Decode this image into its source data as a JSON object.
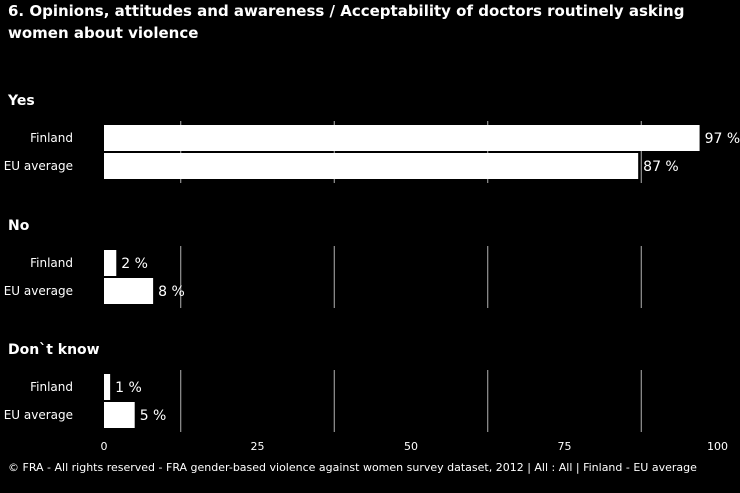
{
  "title": "6. Opinions, attitudes and awareness / Acceptability of doctors routinely asking women about violence",
  "source": "© FRA - All rights reserved - FRA gender-based violence against women survey dataset, 2012 | All : All | Finland - EU average",
  "chart_data": {
    "type": "bar",
    "orientation": "horizontal",
    "xlim": [
      0,
      100
    ],
    "xticks": [
      "0",
      "25",
      "50",
      "75",
      "100"
    ],
    "unit": "%",
    "groups": [
      {
        "name": "Yes",
        "bars": [
          {
            "category": "Finland",
            "value": 97,
            "label": "97 %"
          },
          {
            "category": "EU average",
            "value": 87,
            "label": "87 %"
          }
        ]
      },
      {
        "name": "No",
        "bars": [
          {
            "category": "Finland",
            "value": 2,
            "label": "2 %"
          },
          {
            "category": "EU average",
            "value": 8,
            "label": "8 %"
          }
        ]
      },
      {
        "name": "Don`t know",
        "bars": [
          {
            "category": "Finland",
            "value": 1,
            "label": "1 %"
          },
          {
            "category": "EU average",
            "value": 5,
            "label": "5 %"
          }
        ]
      }
    ],
    "colors": {
      "background": "#000000",
      "bar": "#ffffff",
      "grid": "#ffffff",
      "text": "#ffffff"
    }
  }
}
